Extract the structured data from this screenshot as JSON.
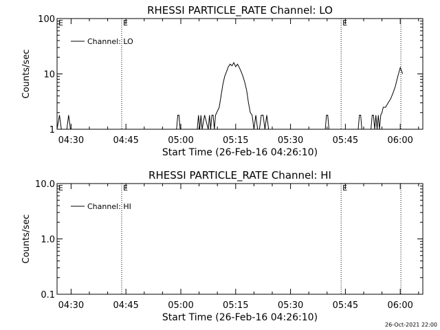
{
  "chart_data": [
    {
      "type": "line",
      "title": "RHESSI PARTICLE_RATE Channel: LO",
      "xlabel": "Start Time (26-Feb-16 04:26:10)",
      "ylabel": "Counts/sec",
      "yscale": "log",
      "ylim": [
        1,
        100
      ],
      "xlim": [
        "04:26:10",
        "06:06:10"
      ],
      "x_ticks": [
        "04:30",
        "04:45",
        "05:00",
        "05:15",
        "05:30",
        "05:45",
        "06:00"
      ],
      "y_ticks": [
        "1",
        "10",
        "100"
      ],
      "grid": false,
      "legend": {
        "position": "top-left",
        "entries": [
          "Channel: LO"
        ]
      },
      "markers": [
        {
          "time": "04:43:50",
          "label": "E"
        },
        {
          "time": "05:43:50",
          "label": "E"
        },
        {
          "time": "06:00:10",
          "label": ""
        }
      ],
      "series": [
        {
          "name": "Channel: LO",
          "x": [
            "04:26:10",
            "04:26:50",
            "04:27:20",
            "04:27:50",
            "04:28:20",
            "04:28:50",
            "04:29:20",
            "04:29:50",
            "04:30:20",
            "04:58:50",
            "04:59:10",
            "04:59:30",
            "04:59:50",
            "05:04:30",
            "05:04:50",
            "05:05:10",
            "05:05:30",
            "05:05:50",
            "05:06:30",
            "05:07:30",
            "05:07:50",
            "05:08:10",
            "05:08:30",
            "05:08:50",
            "05:09:10",
            "05:09:30",
            "05:10:30",
            "05:11:00",
            "05:11:30",
            "05:12:00",
            "05:12:30",
            "05:13:00",
            "05:13:30",
            "05:14:00",
            "05:14:30",
            "05:15:00",
            "05:15:30",
            "05:16:00",
            "05:16:30",
            "05:17:00",
            "05:17:30",
            "05:18:00",
            "05:18:30",
            "05:19:00",
            "05:19:30",
            "05:20:00",
            "05:20:30",
            "05:21:00",
            "05:21:30",
            "05:22:00",
            "05:22:30",
            "05:23:00",
            "05:23:30",
            "05:24:00",
            "05:24:30",
            "05:25:00",
            "05:39:30",
            "05:39:50",
            "05:40:10",
            "05:40:30",
            "05:48:30",
            "05:48:50",
            "05:49:10",
            "05:49:30",
            "05:52:00",
            "05:52:20",
            "05:52:40",
            "05:53:00",
            "05:53:20",
            "05:53:40",
            "05:54:00",
            "05:54:20",
            "05:54:40",
            "05:55:00",
            "05:55:20",
            "05:56:00",
            "05:56:40",
            "05:57:20",
            "05:58:00",
            "05:58:40",
            "05:59:20",
            "06:00:00",
            "06:00:40"
          ],
          "y": [
            1,
            1.8,
            1,
            1,
            1,
            1,
            1.8,
            1,
            1,
            1,
            1.8,
            1.8,
            1,
            1,
            1.8,
            1,
            1.8,
            1,
            1.8,
            1,
            1.8,
            1,
            1.8,
            1.8,
            1,
            1.8,
            2.5,
            4,
            6.5,
            9,
            11,
            13.5,
            15,
            14,
            16,
            13.5,
            15,
            13,
            11,
            9,
            7,
            5,
            3,
            2,
            1.8,
            1,
            1.8,
            1,
            1,
            1.8,
            1.8,
            1,
            1.8,
            1,
            1,
            1,
            1,
            1.8,
            1.8,
            1,
            1,
            1.8,
            1.8,
            1,
            1,
            1.8,
            1.8,
            1,
            1.8,
            1,
            1.8,
            1,
            1.8,
            2,
            2.5,
            2.5,
            3,
            3.5,
            4.5,
            6,
            9,
            13,
            10
          ]
        }
      ]
    },
    {
      "type": "line",
      "title": "RHESSI PARTICLE_RATE Channel: HI",
      "xlabel": "Start Time (26-Feb-16 04:26:10)",
      "ylabel": "Counts/sec",
      "yscale": "log",
      "ylim": [
        0.1,
        10
      ],
      "xlim": [
        "04:26:10",
        "06:06:10"
      ],
      "x_ticks": [
        "04:30",
        "04:45",
        "05:00",
        "05:15",
        "05:30",
        "05:45",
        "06:00"
      ],
      "y_ticks": [
        "0.1",
        "1.0",
        "10.0"
      ],
      "grid": false,
      "legend": {
        "position": "top-left",
        "entries": [
          "Channel: HI"
        ]
      },
      "markers": [
        {
          "time": "04:43:50",
          "label": "E"
        },
        {
          "time": "05:43:50",
          "label": "E"
        },
        {
          "time": "06:00:10",
          "label": ""
        }
      ],
      "series": [
        {
          "name": "Channel: HI",
          "x": [],
          "y": []
        }
      ]
    }
  ],
  "footer": {
    "timestamp": "26-Oct-2021 22:00"
  }
}
